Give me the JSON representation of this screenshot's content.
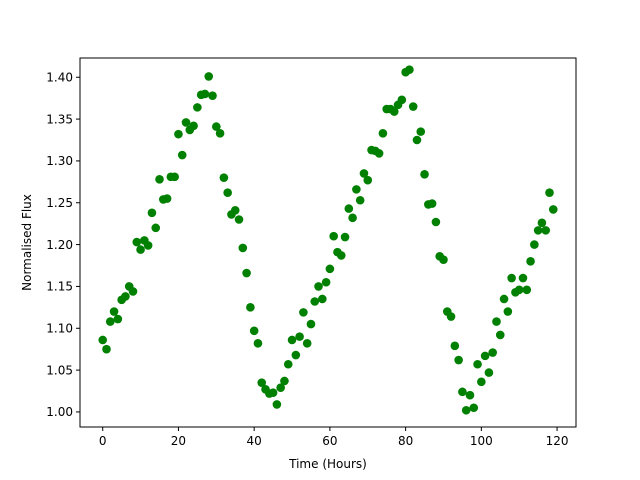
{
  "chart_data": {
    "type": "scatter",
    "title": "",
    "xlabel": "Time (Hours)",
    "ylabel": "Normalised Flux",
    "xlim": [
      -6,
      125
    ],
    "ylim": [
      0.982,
      1.423
    ],
    "xticks": [
      0,
      20,
      40,
      60,
      80,
      100,
      120
    ],
    "yticks": [
      1.0,
      1.05,
      1.1,
      1.15,
      1.2,
      1.25,
      1.3,
      1.35,
      1.4
    ],
    "xtick_labels": [
      "0",
      "20",
      "40",
      "60",
      "80",
      "100",
      "120"
    ],
    "ytick_labels": [
      "1.00",
      "1.05",
      "1.10",
      "1.15",
      "1.20",
      "1.25",
      "1.30",
      "1.35",
      "1.40"
    ],
    "grid": false,
    "marker_color": "#008000",
    "series": [
      {
        "x": [
          0,
          1,
          2,
          3,
          4,
          5,
          6,
          7,
          8,
          9,
          10,
          11,
          12,
          13,
          14,
          15,
          16,
          17,
          18,
          19,
          20,
          21,
          22,
          23,
          24,
          25,
          26,
          27,
          28,
          29,
          30,
          31,
          32,
          33,
          34,
          35,
          36,
          37,
          38,
          39,
          40,
          41,
          42,
          43,
          44,
          45,
          46,
          47,
          48,
          49,
          50,
          51,
          52,
          53,
          54,
          55,
          56,
          57,
          58,
          59,
          60,
          61,
          62,
          63,
          64,
          65,
          66,
          67,
          68,
          69,
          70,
          71,
          72,
          73,
          74,
          75,
          76,
          77,
          78,
          79,
          80,
          81,
          82,
          83,
          84,
          85,
          86,
          87,
          88,
          89,
          90,
          91,
          92,
          93,
          94,
          95,
          96,
          97,
          98,
          99,
          100,
          101,
          102,
          103,
          104,
          105,
          106,
          107,
          108,
          109,
          110,
          111,
          112,
          113,
          114,
          115,
          116,
          117,
          118,
          119
        ],
        "y": [
          1.086,
          1.075,
          1.108,
          1.12,
          1.111,
          1.134,
          1.138,
          1.15,
          1.144,
          1.203,
          1.194,
          1.205,
          1.199,
          1.238,
          1.22,
          1.278,
          1.254,
          1.255,
          1.281,
          1.281,
          1.332,
          1.307,
          1.346,
          1.337,
          1.342,
          1.364,
          1.379,
          1.38,
          1.401,
          1.378,
          1.341,
          1.333,
          1.28,
          1.262,
          1.236,
          1.241,
          1.23,
          1.196,
          1.166,
          1.125,
          1.097,
          1.082,
          1.035,
          1.027,
          1.022,
          1.023,
          1.009,
          1.029,
          1.037,
          1.057,
          1.086,
          1.068,
          1.09,
          1.119,
          1.082,
          1.105,
          1.132,
          1.15,
          1.135,
          1.155,
          1.171,
          1.21,
          1.191,
          1.187,
          1.209,
          1.243,
          1.232,
          1.266,
          1.253,
          1.285,
          1.277,
          1.313,
          1.312,
          1.309,
          1.333,
          1.362,
          1.362,
          1.359,
          1.367,
          1.373,
          1.406,
          1.409,
          1.365,
          1.325,
          1.335,
          1.284,
          1.248,
          1.249,
          1.227,
          1.186,
          1.182,
          1.12,
          1.114,
          1.079,
          1.062,
          1.024,
          1.002,
          1.02,
          1.005,
          1.057,
          1.036,
          1.067,
          1.047,
          1.071,
          1.108,
          1.092,
          1.135,
          1.12,
          1.16,
          1.143,
          1.146,
          1.16,
          1.146,
          1.18,
          1.2,
          1.217,
          1.226,
          1.217,
          1.262,
          1.242
        ]
      }
    ]
  }
}
